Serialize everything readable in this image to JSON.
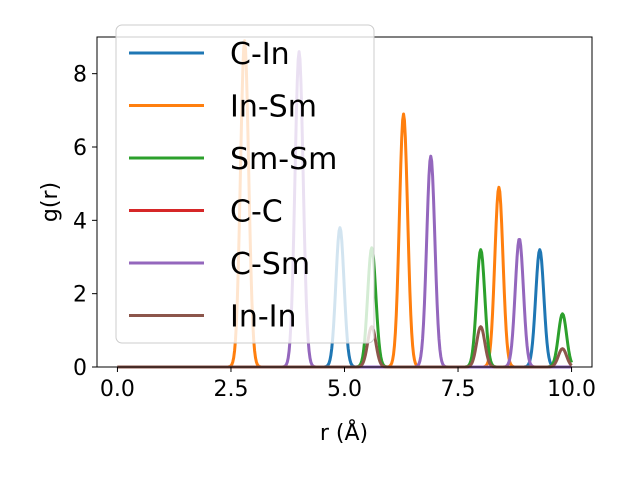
{
  "chart_data": {
    "type": "line",
    "xlabel": "r (Å)",
    "ylabel": "g(r)",
    "xlim": [
      -0.45,
      10.45
    ],
    "ylim": [
      0,
      9
    ],
    "xticks": [
      0.0,
      2.5,
      5.0,
      7.5,
      10.0
    ],
    "xtick_labels": [
      "0.0",
      "2.5",
      "5.0",
      "7.5",
      "10.0"
    ],
    "yticks": [
      0,
      2,
      4,
      6,
      8
    ],
    "ytick_labels": [
      "0",
      "2",
      "4",
      "6",
      "8"
    ],
    "grid": false,
    "legend_position": "upper-left",
    "series": [
      {
        "name": "C-In",
        "color": "#1f77b4",
        "peaks": [
          {
            "x": 4.9,
            "y": 3.8
          },
          {
            "x": 9.3,
            "y": 3.2
          }
        ]
      },
      {
        "name": "In-Sm",
        "color": "#ff7f0e",
        "peaks": [
          {
            "x": 2.8,
            "y": 8.9
          },
          {
            "x": 6.3,
            "y": 6.9
          },
          {
            "x": 8.4,
            "y": 4.9
          }
        ]
      },
      {
        "name": "Sm-Sm",
        "color": "#2ca02c",
        "peaks": [
          {
            "x": 5.6,
            "y": 3.25
          },
          {
            "x": 8.0,
            "y": 3.2
          },
          {
            "x": 9.8,
            "y": 1.45
          }
        ]
      },
      {
        "name": "C-C",
        "color": "#d62728",
        "peaks": []
      },
      {
        "name": "C-Sm",
        "color": "#9467bd",
        "peaks": [
          {
            "x": 4.0,
            "y": 8.6
          },
          {
            "x": 6.9,
            "y": 5.75
          },
          {
            "x": 8.85,
            "y": 3.5
          }
        ]
      },
      {
        "name": "In-In",
        "color": "#8c564b",
        "peaks": [
          {
            "x": 5.6,
            "y": 1.1
          },
          {
            "x": 8.0,
            "y": 1.1
          },
          {
            "x": 9.8,
            "y": 0.5
          }
        ]
      }
    ]
  }
}
